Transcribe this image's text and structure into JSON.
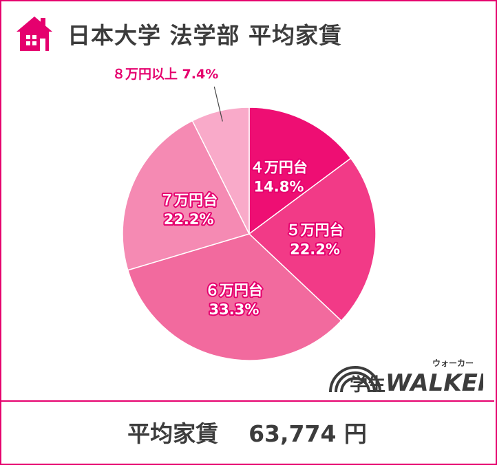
{
  "header": {
    "title": "日本大学 法学部 平均家賃",
    "icon": "house-icon"
  },
  "colors": {
    "accent": "#e5006e",
    "slices": [
      "#ee0e73",
      "#f23a87",
      "#f26a9e",
      "#f58ab3",
      "#f9aac9"
    ],
    "outside_label": "#e5006e",
    "text_dark": "#3c3c3c"
  },
  "chart_data": {
    "type": "pie",
    "title": "日本大学 法学部 平均家賃",
    "start_angle_deg": 0,
    "direction": "clockwise",
    "slices": [
      {
        "label": "４万円台",
        "value": 14.8,
        "value_label": "14.8%"
      },
      {
        "label": "５万円台",
        "value": 22.2,
        "value_label": "22.2%"
      },
      {
        "label": "６万円台",
        "value": 33.3,
        "value_label": "33.3%"
      },
      {
        "label": "７万円台",
        "value": 22.2,
        "value_label": "22.2%"
      },
      {
        "label": "８万円以上",
        "value": 7.4,
        "value_label": "7.4%",
        "label_outside": true
      }
    ]
  },
  "footer": {
    "label": "平均家賃",
    "value": "63,774 円"
  },
  "logo": {
    "text_jp": "学生",
    "text_en": "WALKER",
    "ruby": "ウォーカー"
  }
}
